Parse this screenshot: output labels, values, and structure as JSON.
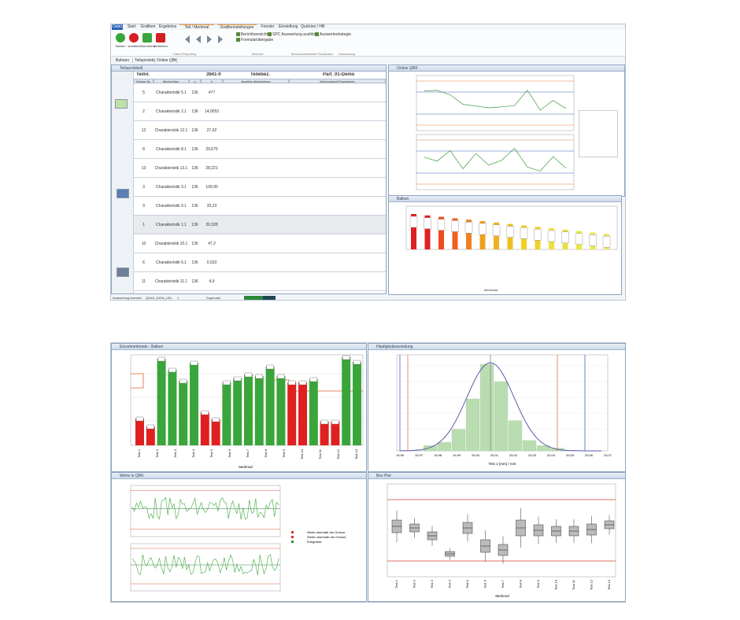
{
  "ribbon": {
    "tabs": [
      "Datei",
      "Start",
      "Grafiken",
      "Ergebnisse",
      "Teil / Merkmal",
      "Grafikeinstellungen",
      "Fenster",
      "Einstellung",
      "Quickies / Hilfe"
    ],
    "buttons": [
      "Starten",
      "anhalten",
      "Übernehmen",
      "Verwerfen"
    ],
    "menu": [
      "Berichtsansicht",
      "Formularübergabe",
      "SPC Auswertung ausführen",
      "Auswertestrategie"
    ],
    "groups": [
      "Daten-Reporting",
      "Berichte",
      "Benutzerdefinierte Funktionen",
      "Auswertung"
    ]
  },
  "toolbar": [
    "Bahnen",
    "Teileprotokoll",
    "Online QBK"
  ],
  "protocol": {
    "title": "Teileprotokoll",
    "part_no_label": "Teilnr.",
    "part_no": "3941-0",
    "part_name_label": "Teilebez.",
    "part_name": "Part_01-Demo",
    "columns": [
      "Merkm.Nr.",
      "Merkm.Bez.",
      "n",
      "x̄",
      "Anzeige Abweichung",
      "Werteverlauf Einzelwerte"
    ],
    "rows": [
      [
        "5",
        "Charakteristik 5.1",
        "136",
        "477"
      ],
      [
        "2",
        "Charakteristik 2.1",
        "136",
        "14,0053"
      ],
      [
        "12",
        "Charakteristik 12.1",
        "136",
        "27,02"
      ],
      [
        "8",
        "Charakteristik 8.1",
        "136",
        "29,675"
      ],
      [
        "13",
        "Charakteristik 13.1",
        "136",
        "28,221"
      ],
      [
        "3",
        "Charakteristik 3.1",
        "136",
        "109,90"
      ],
      [
        "9",
        "Charakteristik 9.1",
        "136",
        "20,23"
      ],
      [
        "1",
        "Charakteristik 1.1",
        "136",
        "20,328"
      ],
      [
        "10",
        "Charakteristik 10.1",
        "136",
        "47,2"
      ],
      [
        "6",
        "Charakteristik 6.1",
        "136",
        "0,033"
      ],
      [
        "11",
        "Charakteristik 11.1",
        "136",
        "4,9"
      ]
    ]
  },
  "panels": {
    "qrk": "Online QRK",
    "bars": "Balken",
    "bars_x": "Merkmale"
  },
  "status": [
    "Auswertung beendet",
    "QDAS_DATA_UDL",
    "1",
    "Superuser"
  ],
  "bottom": {
    "bars_title": "Einzelmerkmale - Balken",
    "bars_x": "Merkmal",
    "bars_cats": [
      "Test 1",
      "Test 2",
      "Test 3",
      "Test 4",
      "Test 5",
      "Test 6",
      "Test 7",
      "Test 8",
      "Test 9",
      "Test 10",
      "Test 11",
      "Test 12",
      "Test 13"
    ],
    "hist_title": "Häufigkeitsverteilung",
    "hist_x": "Test 1 (mm) / mm",
    "hist_ticks": [
      "19,96",
      "19,97",
      "19,98",
      "19,99",
      "20,00",
      "20,01",
      "20,02",
      "20,03",
      "20,04",
      "20,05",
      "20,06",
      "20,07"
    ],
    "qrk_title": "Werte in QRK",
    "qrk_legend": [
      "Werte oberhalb der Grenze",
      "Werte unterhalb der Grenze",
      "Ereignisse"
    ],
    "box_title": "Box Plot",
    "box_x": "Merkmal"
  }
}
